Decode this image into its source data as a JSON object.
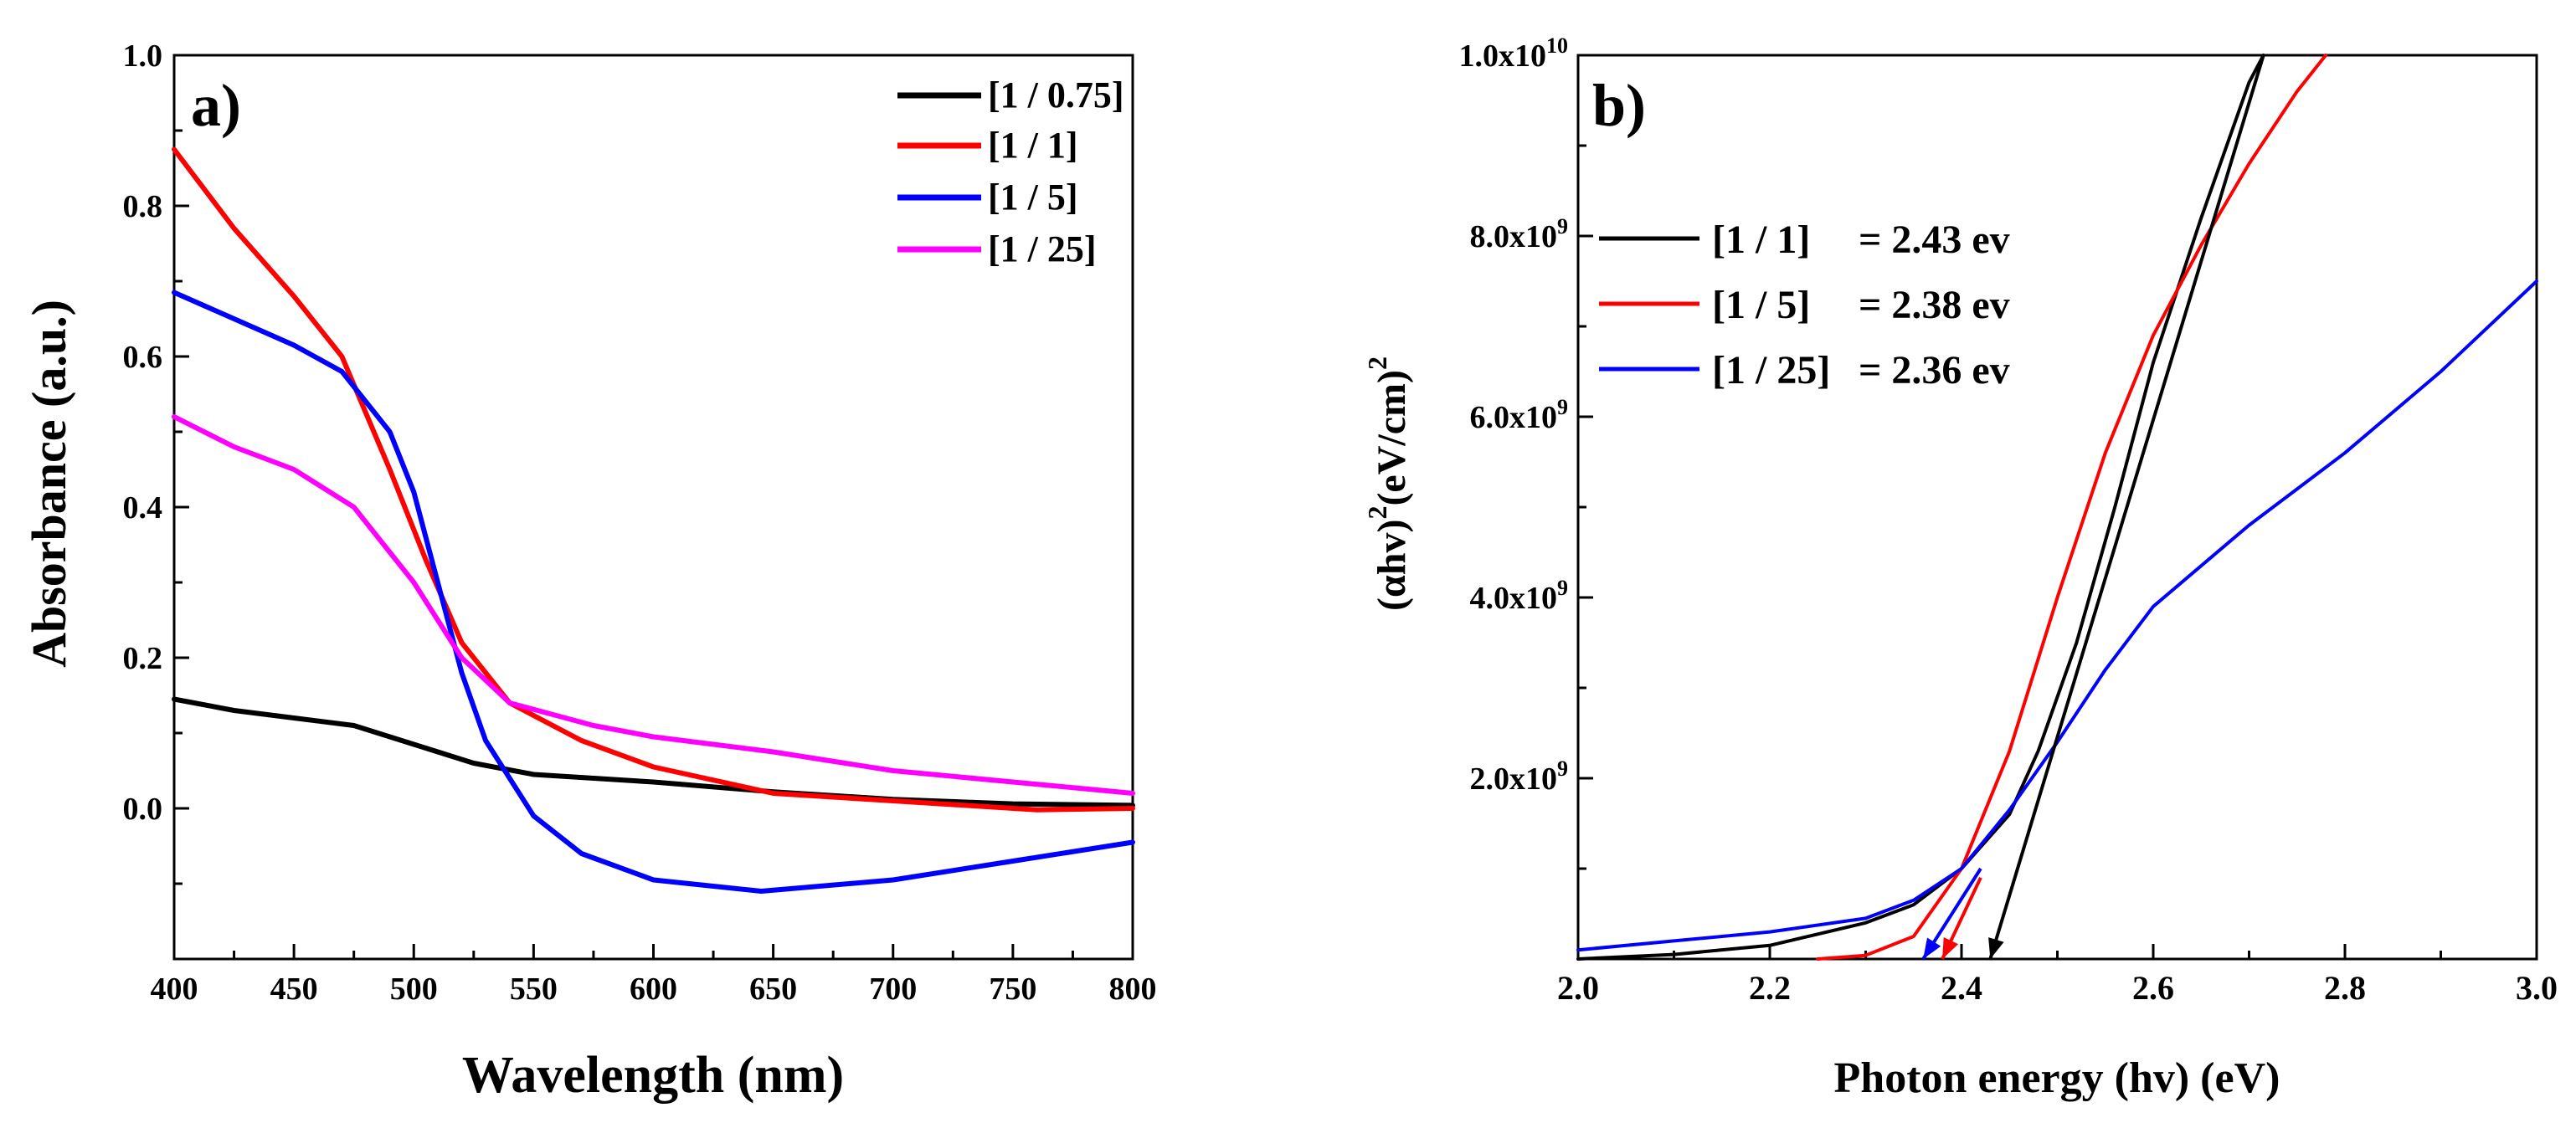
{
  "chart_data": [
    {
      "panel_label": "a)",
      "type": "line",
      "xlabel": "Wavelength (nm)",
      "ylabel": "Absorbance (a.u.)",
      "xlim": [
        400,
        800
      ],
      "ylim": [
        -0.2,
        1.0
      ],
      "xticks": [
        400,
        450,
        500,
        550,
        600,
        650,
        700,
        750,
        800
      ],
      "xtick_labels": [
        "400",
        "450",
        "500",
        "550",
        "600",
        "650",
        "700",
        "750",
        "800"
      ],
      "yticks": [
        0.0,
        0.2,
        0.4,
        0.6,
        0.8,
        1.0
      ],
      "ytick_labels": [
        "0.0",
        "0.2",
        "0.4",
        "0.6",
        "0.8",
        "1.0"
      ],
      "legend_position": "top-right",
      "series": [
        {
          "name": "[1 / 0.75]",
          "color": "#000000",
          "x": [
            400,
            425,
            450,
            475,
            500,
            525,
            550,
            600,
            650,
            700,
            750,
            800
          ],
          "y": [
            0.145,
            0.13,
            0.12,
            0.11,
            0.085,
            0.06,
            0.045,
            0.035,
            0.022,
            0.012,
            0.006,
            0.004
          ]
        },
        {
          "name": "[1 / 1]",
          "color": "#ff0000",
          "x": [
            400,
            425,
            450,
            470,
            490,
            505,
            520,
            540,
            570,
            600,
            650,
            700,
            760,
            800
          ],
          "y": [
            0.875,
            0.77,
            0.68,
            0.6,
            0.45,
            0.33,
            0.22,
            0.14,
            0.09,
            0.055,
            0.02,
            0.01,
            -0.002,
            0.0
          ]
        },
        {
          "name": "[1 / 5]",
          "color": "#0000ff",
          "x": [
            400,
            425,
            450,
            470,
            490,
            500,
            510,
            520,
            530,
            550,
            570,
            600,
            645,
            700,
            750,
            800
          ],
          "y": [
            0.685,
            0.65,
            0.615,
            0.58,
            0.5,
            0.42,
            0.3,
            0.18,
            0.09,
            -0.01,
            -0.06,
            -0.095,
            -0.11,
            -0.095,
            -0.07,
            -0.045
          ]
        },
        {
          "name": "[1 / 25]",
          "color": "#ff00ff",
          "x": [
            400,
            425,
            450,
            475,
            500,
            520,
            540,
            575,
            600,
            650,
            700,
            750,
            800
          ],
          "y": [
            0.52,
            0.48,
            0.45,
            0.4,
            0.3,
            0.2,
            0.14,
            0.11,
            0.095,
            0.075,
            0.05,
            0.035,
            0.02
          ]
        }
      ]
    },
    {
      "panel_label": "b)",
      "type": "line",
      "xlabel": "Photon energy (hv) (eV)",
      "ylabel": "(αhv)²(eV/cm)²",
      "xlim": [
        2.0,
        3.0
      ],
      "ylim": [
        0,
        10000000000
      ],
      "xticks": [
        2.0,
        2.2,
        2.4,
        2.6,
        2.8,
        3.0
      ],
      "xtick_labels": [
        "2.0",
        "2.2",
        "2.4",
        "2.6",
        "2.8",
        "3.0"
      ],
      "yticks": [
        2000000000,
        4000000000,
        6000000000,
        8000000000,
        10000000000
      ],
      "ytick_labels": [
        {
          "mantissa": "2.0x10",
          "exp": "9"
        },
        {
          "mantissa": "4.0x10",
          "exp": "9"
        },
        {
          "mantissa": "6.0x10",
          "exp": "9"
        },
        {
          "mantissa": "8.0x10",
          "exp": "9"
        },
        {
          "mantissa": "1.0x10",
          "exp": "10"
        }
      ],
      "legend_position": "middle-left",
      "legend": [
        {
          "label": "[1 / 1]",
          "value": "= 2.43 ev",
          "color": "#000000"
        },
        {
          "label": "[1 / 5]",
          "value": "= 2.38 ev",
          "color": "#ff0000"
        },
        {
          "label": "[1 / 25]",
          "value": "= 2.36 ev",
          "color": "#0000ff"
        }
      ],
      "series": [
        {
          "name": "[1 / 1]",
          "color": "#000000",
          "x": [
            2.0,
            2.1,
            2.2,
            2.3,
            2.35,
            2.4,
            2.45,
            2.48,
            2.52,
            2.56,
            2.6,
            2.65,
            2.7,
            2.715
          ],
          "y": [
            0,
            50000000,
            150000000,
            400000000,
            600000000,
            1000000000,
            1600000000,
            2300000000,
            3500000000,
            5000000000,
            6600000000,
            8200000000,
            9700000000,
            10000000000
          ]
        },
        {
          "name": "[1 / 5]",
          "color": "#ff0000",
          "x": [
            2.25,
            2.3,
            2.35,
            2.4,
            2.45,
            2.5,
            2.55,
            2.6,
            2.65,
            2.7,
            2.75,
            2.78
          ],
          "y": [
            0,
            40000000,
            250000000,
            1000000000,
            2300000000,
            4000000000,
            5600000000,
            6900000000,
            7900000000,
            8800000000,
            9600000000,
            10000000000
          ]
        },
        {
          "name": "[1 / 25]",
          "color": "#0000ff",
          "x": [
            2.0,
            2.1,
            2.2,
            2.3,
            2.35,
            2.4,
            2.45,
            2.5,
            2.55,
            2.6,
            2.7,
            2.8,
            2.9,
            3.0
          ],
          "y": [
            100000000,
            200000000,
            300000000,
            450000000,
            650000000,
            1000000000,
            1650000000,
            2400000000,
            3200000000,
            3900000000,
            4800000000,
            5600000000,
            6500000000,
            7500000000
          ]
        }
      ],
      "extrapolation_lines": [
        {
          "name": "[1 / 1] fit",
          "color": "#000000",
          "x": [
            2.43,
            2.715
          ],
          "y": [
            0,
            10000000000
          ]
        },
        {
          "name": "[1 / 5] fit",
          "color": "#ff0000",
          "x": [
            2.38,
            2.42
          ],
          "y": [
            0,
            900000000
          ]
        },
        {
          "name": "[1 / 25] fit",
          "color": "#0000ff",
          "x": [
            2.36,
            2.42
          ],
          "y": [
            0,
            1000000000
          ]
        }
      ]
    }
  ]
}
